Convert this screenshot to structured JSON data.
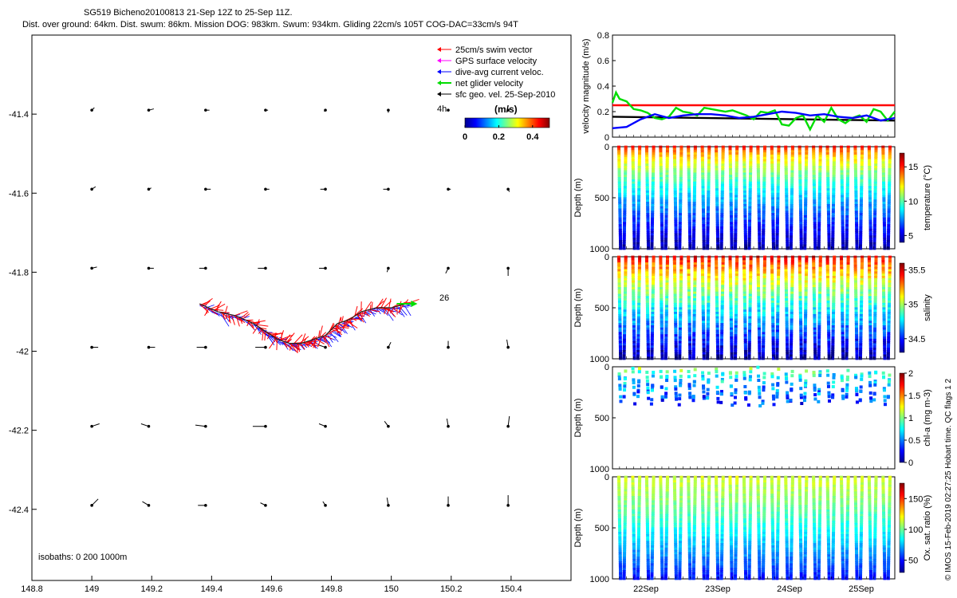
{
  "header": {
    "line1": "SG519 Bicheno20100813 21-Sep 12Z to 25-Sep 11Z.",
    "line2": "Dist. over ground: 64km. Dist. swum: 86km. Mission DOG: 983km. Swum: 934km. Gliding 22cm/s 105T COG-DAC=33cm/s 94T"
  },
  "credit": "© IMOS 15-Feb-2019 02:27:25 Hobart time. QC flags 1  2",
  "colors": {
    "swim": "#ff0000",
    "gps": "#ff00ff",
    "dac": "#0000ff",
    "net": "#00dd00",
    "geo": "#000000"
  },
  "chart_data": [
    {
      "type": "scatter",
      "xlim": [
        148.8,
        150.6
      ],
      "ylim": [
        -42.58,
        -41.2
      ],
      "xticks": [
        "148.8",
        "149",
        "149.2",
        "149.4",
        "149.6",
        "149.8",
        "150",
        "150.2",
        "150.4"
      ],
      "yticks": [
        "-41.4",
        "-41.6",
        "-41.8",
        "-42",
        "-42.2",
        "-42.4"
      ],
      "legend": [
        {
          "label": "25cm/s swim vector",
          "color": "#ff0000"
        },
        {
          "label": "GPS surface velocity",
          "color": "#ff00ff"
        },
        {
          "label": "dive-avg current veloc.",
          "color": "#0000ff"
        },
        {
          "label": "net glider velocity",
          "color": "#00dd00"
        },
        {
          "label": "sfc geo. vel. 25-Sep-2010",
          "color": "#000000"
        }
      ],
      "legend_extra": "4h",
      "colorbar": {
        "unit": "(m/s)",
        "ticks": [
          "0",
          "0.2",
          "0.4"
        ],
        "range": [
          0,
          0.5
        ]
      },
      "isobaths_label": "isobaths: 0   200  1000m",
      "end_label": "26",
      "track": {
        "lon": [
          149.36,
          149.42,
          149.48,
          149.54,
          149.58,
          149.62,
          149.66,
          149.7,
          149.74,
          149.78,
          149.82,
          149.86,
          149.9,
          149.95,
          150.0,
          150.05
        ],
        "lat": [
          -41.88,
          -41.9,
          -41.91,
          -41.93,
          -41.95,
          -41.97,
          -41.98,
          -41.98,
          -41.97,
          -41.96,
          -41.93,
          -41.92,
          -41.9,
          -41.89,
          -41.89,
          -41.88
        ]
      },
      "geo_vectors": {
        "lons": [
          149.0,
          149.19,
          149.38,
          149.58,
          149.78,
          149.99,
          150.19,
          150.39
        ],
        "lats": [
          -41.39,
          -41.59,
          -41.79,
          -41.99,
          -42.19,
          -42.39
        ],
        "u": [
          [
            0.02,
            0.04,
            0.03,
            0.02,
            -0.01,
            0.0,
            0.0,
            0.0
          ],
          [
            0.03,
            0.02,
            0.04,
            0.03,
            -0.04,
            -0.04,
            0.02,
            0.01
          ],
          [
            0.04,
            0.04,
            -0.05,
            -0.06,
            -0.05,
            -0.01,
            -0.02,
            0.0
          ],
          [
            0.05,
            0.05,
            -0.07,
            -0.08,
            -0.06,
            0.02,
            0.0,
            -0.01
          ],
          [
            0.06,
            -0.06,
            -0.08,
            -0.1,
            -0.05,
            -0.03,
            -0.01,
            0.01
          ],
          [
            0.05,
            -0.05,
            -0.06,
            -0.04,
            -0.02,
            -0.01,
            0.0,
            0.0
          ]
        ],
        "v": [
          [
            0.02,
            0.01,
            0.0,
            0.0,
            -0.01,
            -0.02,
            0.0,
            0.0
          ],
          [
            0.02,
            0.01,
            0.0,
            0.0,
            0.0,
            0.0,
            0.0,
            -0.02
          ],
          [
            0.01,
            0.0,
            0.0,
            0.0,
            0.0,
            -0.03,
            -0.04,
            -0.06
          ],
          [
            0.0,
            0.0,
            0.0,
            0.0,
            0.02,
            0.04,
            0.05,
            0.06
          ],
          [
            0.02,
            0.02,
            0.01,
            0.0,
            0.02,
            0.04,
            0.06,
            0.08
          ],
          [
            0.05,
            0.03,
            0.0,
            0.02,
            0.03,
            0.06,
            0.07,
            0.08
          ]
        ]
      }
    },
    {
      "type": "line",
      "ylabel": "velocity magnitude (m/s)",
      "ylim": [
        0,
        0.8
      ],
      "yticks": [
        "0",
        "0.2",
        "0.4",
        "0.6",
        "0.8"
      ],
      "xlim": [
        0,
        4
      ],
      "series": [
        {
          "color": "#ff0000",
          "x": [
            0,
            4
          ],
          "values": [
            0.25,
            0.25
          ]
        },
        {
          "color": "#000000",
          "x": [
            0,
            4
          ],
          "values": [
            0.16,
            0.13
          ]
        },
        {
          "color": "#00dd00",
          "x": [
            0.0,
            0.05,
            0.1,
            0.2,
            0.3,
            0.4,
            0.5,
            0.6,
            0.7,
            0.8,
            0.9,
            1.0,
            1.1,
            1.2,
            1.3,
            1.4,
            1.5,
            1.6,
            1.7,
            1.8,
            1.9,
            2.0,
            2.1,
            2.2,
            2.3,
            2.4,
            2.5,
            2.6,
            2.7,
            2.8,
            2.9,
            3.0,
            3.1,
            3.2,
            3.3,
            3.4,
            3.5,
            3.6,
            3.7,
            3.8,
            3.9,
            4.0
          ],
          "values": [
            0.27,
            0.35,
            0.3,
            0.28,
            0.22,
            0.21,
            0.19,
            0.15,
            0.14,
            0.16,
            0.23,
            0.2,
            0.19,
            0.17,
            0.23,
            0.22,
            0.21,
            0.2,
            0.21,
            0.19,
            0.17,
            0.14,
            0.2,
            0.19,
            0.21,
            0.1,
            0.09,
            0.15,
            0.17,
            0.06,
            0.17,
            0.12,
            0.23,
            0.14,
            0.11,
            0.15,
            0.17,
            0.12,
            0.22,
            0.2,
            0.13,
            0.2
          ]
        },
        {
          "color": "#0000ff",
          "x": [
            0.0,
            0.2,
            0.4,
            0.6,
            0.8,
            1.0,
            1.2,
            1.4,
            1.6,
            1.8,
            2.0,
            2.2,
            2.4,
            2.6,
            2.8,
            3.0,
            3.2,
            3.4,
            3.6,
            3.8,
            4.0
          ],
          "values": [
            0.07,
            0.08,
            0.14,
            0.18,
            0.15,
            0.17,
            0.18,
            0.18,
            0.17,
            0.15,
            0.16,
            0.18,
            0.2,
            0.19,
            0.17,
            0.18,
            0.16,
            0.15,
            0.17,
            0.13,
            0.15
          ]
        }
      ]
    },
    {
      "type": "scatter",
      "ylabel": "Depth (m)",
      "ylim": [
        1000,
        0
      ],
      "yticks": [
        "0",
        "500",
        "1000"
      ],
      "cbar_label": "temperature (°C)",
      "cbar_ticks": [
        "5",
        "10",
        "15"
      ],
      "cbar_range": [
        4,
        17
      ],
      "dives": 40
    },
    {
      "type": "scatter",
      "ylabel": "Depth (m)",
      "ylim": [
        1000,
        0
      ],
      "yticks": [
        "0",
        "500",
        "1000"
      ],
      "cbar_label": "salinity",
      "cbar_ticks": [
        "34.5",
        "35",
        "35.5"
      ],
      "cbar_range": [
        34.3,
        35.6
      ],
      "dives": 40
    },
    {
      "type": "scatter",
      "ylabel": "Depth (m)",
      "ylim": [
        1000,
        0
      ],
      "yticks": [
        "0",
        "500",
        "1000"
      ],
      "cbar_label": "chl-a (mg m-3)",
      "cbar_ticks": [
        "0",
        "0.5",
        "1",
        "1.5",
        "2"
      ],
      "cbar_range": [
        0,
        2
      ],
      "dives": 40
    },
    {
      "type": "scatter",
      "ylabel": "Depth (m)",
      "ylim": [
        1000,
        0
      ],
      "yticks": [
        "0",
        "500",
        "1000"
      ],
      "xticks": [
        "22Sep",
        "23Sep",
        "24Sep",
        "25Sep"
      ],
      "cbar_label": "Ox. sat. ratio (%)",
      "cbar_ticks": [
        "50",
        "100",
        "150"
      ],
      "cbar_range": [
        30,
        175
      ],
      "dives": 40
    }
  ]
}
